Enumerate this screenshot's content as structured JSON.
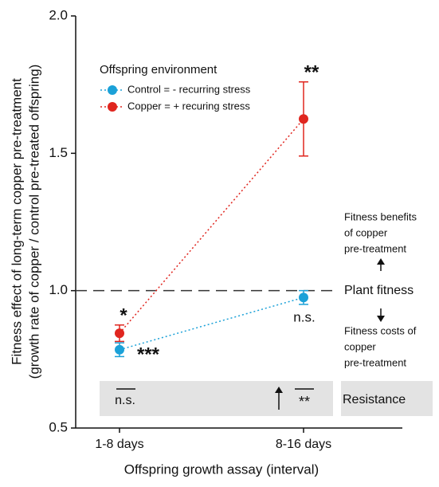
{
  "chart_data": {
    "type": "line",
    "ylabel": [
      "Fitness effect of long-term copper pre-treatment",
      "(growth rate of copper / control pre-treated offspring)"
    ],
    "xlabel": "Offspring growth assay (interval)",
    "categories": [
      "1-8 days",
      "8-16 days"
    ],
    "legend_title": "Offspring environment",
    "series": [
      {
        "name": "Control = - recurring stress",
        "color": "#1ba1d8",
        "values": [
          0.785,
          0.975
        ],
        "errors": [
          0.025,
          0.025
        ],
        "significance": [
          "***",
          "n.s."
        ]
      },
      {
        "name": "Copper = + recuring stress",
        "color": "#e0261f",
        "values": [
          0.845,
          1.625
        ],
        "errors": [
          0.03,
          0.135
        ],
        "significance": [
          "*",
          "**"
        ]
      }
    ],
    "ylim": [
      0.5,
      2.0
    ],
    "yticks": [
      0.5,
      {
        "value": 1.0,
        "label": "1.0"
      },
      1.5,
      {
        "value": 2.0,
        "label": "2.0"
      }
    ],
    "reference_line": {
      "value": 1.0,
      "label": "Plant fitness"
    },
    "benefits_label": [
      "Fitness benefits",
      "of copper",
      "pre-treatment"
    ],
    "costs_label": [
      "Fitness costs of",
      "copper",
      "pre-treatment"
    ],
    "resistance": {
      "label": "Resistance",
      "tests": [
        "n.s.",
        "**"
      ]
    }
  }
}
